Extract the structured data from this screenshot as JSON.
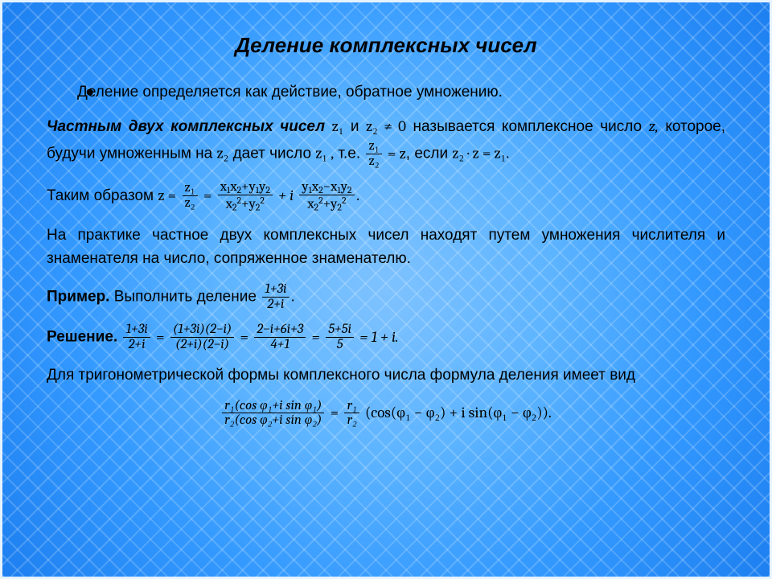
{
  "colors": {
    "bg_outer": "#1d7ff0",
    "bg_mid": "#3399ff",
    "bg_inner": "#7ec2ff",
    "border": "#e6f3ff",
    "text": "#000000",
    "moire": "rgba(255,255,255,0.18)"
  },
  "typography": {
    "title": {
      "fontsize": 26,
      "weight": "bold",
      "style": "italic",
      "align": "center"
    },
    "body": {
      "fontsize": 19,
      "family": "Arial"
    },
    "math": {
      "family": "Cambria",
      "fontsize": 17
    }
  },
  "title": "Деление комплексных чисел",
  "bullet": "●",
  "p1_lead": "Деление определяется как действие, обратное умножению.",
  "p2_a": "Частным двух комплексных чисел",
  "p2_z1": "z₁",
  "p2_and": "и",
  "p2_z2": "z₂ ≠ 0",
  "p2_b": "называется комплексное число",
  "p2_z": "z,",
  "p2_c": "которое, будучи умноженным на",
  "p2_z2b": "z₂",
  "p2_d": "дает число",
  "p2_z1b": "z₁ ,",
  "p2_e": "т.е.",
  "p2_frac": {
    "num": "z₁",
    "den": "z₂"
  },
  "p2_f": "= z",
  "p2_g": ", если",
  "p2_h": "z₂ · z = z₁.",
  "p3_a": "Таким образом",
  "p3_eqL": "z =",
  "p3_frac1": {
    "num": "z₁",
    "den": "z₂"
  },
  "p3_eq2": "=",
  "p3_frac2": {
    "num": "x₁x₂+y₁y₂",
    "den": "x₂²+y₂²"
  },
  "p3_plus": "+ i",
  "p3_frac3": {
    "num": "y₁x₂−x₁y₂",
    "den": "x₂²+y₂²"
  },
  "p3_end": ".",
  "p4": "На практике частное двух комплексных чисел находят путем умножения числителя и знаменателя на число, сопряженное знаменателю.",
  "p5_a": "Пример.",
  "p5_b": "Выполнить деление",
  "p5_frac": {
    "num": "1+3i",
    "den": "2+i"
  },
  "p5_c": ".",
  "p6_a": "Решение.",
  "p6_f1": {
    "num": "1+3i",
    "den": "2+i"
  },
  "p6_eq": "=",
  "p6_f2": {
    "num": "(1+3i)(2−i)",
    "den": "(2+i)(2−i)"
  },
  "p6_f3": {
    "num": "2−i+6i+3",
    "den": "4+1"
  },
  "p6_f4": {
    "num": "5+5i",
    "den": "5"
  },
  "p6_res": "= 1 + i.",
  "p7": "Для тригонометрической формы комплексного числа формула деления имеет вид",
  "p8_f": {
    "num": "r₁(cos φ₁+i sin φ₁)",
    "den": "r₂(cos φ₂+i sin φ₂)"
  },
  "p8_eq": "=",
  "p8_f2": {
    "num": "r₁",
    "den": "r₂"
  },
  "p8_rest": "(cos(φ₁ − φ₂) + i sin(φ₁ − φ₂))."
}
